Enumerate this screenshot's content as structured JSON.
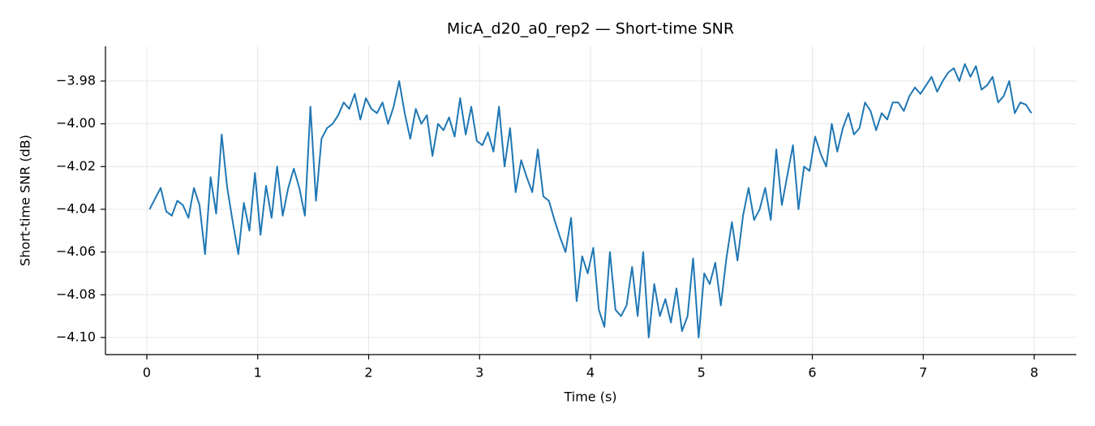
{
  "chart_data": {
    "type": "line",
    "title": "MicA_d20_a0_rep2 — Short-time SNR",
    "xlabel": "Time (s)",
    "ylabel": "Short-time SNR (dB)",
    "xlim": [
      -0.373,
      8.38
    ],
    "ylim": [
      -4.108,
      -3.9637
    ],
    "xticks": [
      0,
      1,
      2,
      3,
      4,
      5,
      6,
      7,
      8
    ],
    "yticks": [
      {
        "value": -4.1,
        "label": "−4.10"
      },
      {
        "value": -4.08,
        "label": "−4.08"
      },
      {
        "value": -4.06,
        "label": "−4.06"
      },
      {
        "value": -4.04,
        "label": "−4.04"
      },
      {
        "value": -4.02,
        "label": "−4.02"
      },
      {
        "value": -4.0,
        "label": "−4.00"
      },
      {
        "value": -3.98,
        "label": "−3.98"
      }
    ],
    "grid": true,
    "series": [
      {
        "color": "#1f77b4",
        "x": [
          0.025,
          0.075,
          0.125,
          0.175,
          0.225,
          0.275,
          0.325,
          0.375,
          0.425,
          0.475,
          0.525,
          0.575,
          0.625,
          0.675,
          0.725,
          0.775,
          0.825,
          0.875,
          0.925,
          0.975,
          1.025,
          1.075,
          1.125,
          1.175,
          1.225,
          1.275,
          1.325,
          1.375,
          1.425,
          1.475,
          1.525,
          1.575,
          1.625,
          1.675,
          1.725,
          1.775,
          1.825,
          1.875,
          1.925,
          1.975,
          2.025,
          2.075,
          2.125,
          2.175,
          2.225,
          2.275,
          2.325,
          2.375,
          2.425,
          2.475,
          2.525,
          2.575,
          2.625,
          2.675,
          2.725,
          2.775,
          2.825,
          2.875,
          2.925,
          2.975,
          3.025,
          3.075,
          3.125,
          3.175,
          3.225,
          3.275,
          3.325,
          3.375,
          3.425,
          3.475,
          3.525,
          3.575,
          3.625,
          3.675,
          3.725,
          3.775,
          3.825,
          3.875,
          3.925,
          3.975,
          4.025,
          4.075,
          4.125,
          4.175,
          4.225,
          4.275,
          4.325,
          4.375,
          4.425,
          4.475,
          4.525,
          4.575,
          4.625,
          4.675,
          4.725,
          4.775,
          4.825,
          4.875,
          4.925,
          4.975,
          5.025,
          5.075,
          5.125,
          5.175,
          5.225,
          5.275,
          5.325,
          5.375,
          5.425,
          5.475,
          5.525,
          5.575,
          5.625,
          5.675,
          5.725,
          5.775,
          5.825,
          5.875,
          5.925,
          5.975,
          6.025,
          6.075,
          6.125,
          6.175,
          6.225,
          6.275,
          6.325,
          6.375,
          6.425,
          6.475,
          6.525,
          6.575,
          6.625,
          6.675,
          6.725,
          6.775,
          6.825,
          6.875,
          6.925,
          6.975,
          7.025,
          7.075,
          7.125,
          7.175,
          7.225,
          7.275,
          7.325,
          7.375,
          7.425,
          7.475,
          7.525,
          7.575,
          7.625,
          7.675,
          7.725,
          7.775,
          7.825,
          7.875,
          7.925,
          7.975
        ],
        "values": [
          -4.04,
          -4.035,
          -4.03,
          -4.041,
          -4.043,
          -4.036,
          -4.038,
          -4.044,
          -4.03,
          -4.038,
          -4.061,
          -4.025,
          -4.042,
          -4.005,
          -4.03,
          -4.046,
          -4.061,
          -4.037,
          -4.05,
          -4.023,
          -4.052,
          -4.029,
          -4.044,
          -4.02,
          -4.043,
          -4.03,
          -4.021,
          -4.03,
          -4.043,
          -3.992,
          -4.036,
          -4.007,
          -4.002,
          -4.0,
          -3.996,
          -3.99,
          -3.993,
          -3.986,
          -3.998,
          -3.988,
          -3.993,
          -3.995,
          -3.99,
          -4.0,
          -3.992,
          -3.98,
          -3.995,
          -4.007,
          -3.993,
          -4.0,
          -3.996,
          -4.015,
          -4.0,
          -4.003,
          -3.997,
          -4.006,
          -3.988,
          -4.005,
          -3.992,
          -4.008,
          -4.01,
          -4.004,
          -4.013,
          -3.992,
          -4.02,
          -4.002,
          -4.032,
          -4.017,
          -4.025,
          -4.032,
          -4.012,
          -4.034,
          -4.036,
          -4.045,
          -4.053,
          -4.06,
          -4.044,
          -4.083,
          -4.062,
          -4.07,
          -4.058,
          -4.087,
          -4.095,
          -4.06,
          -4.087,
          -4.09,
          -4.085,
          -4.067,
          -4.09,
          -4.06,
          -4.1,
          -4.075,
          -4.09,
          -4.082,
          -4.093,
          -4.077,
          -4.097,
          -4.09,
          -4.063,
          -4.1,
          -4.07,
          -4.075,
          -4.065,
          -4.085,
          -4.063,
          -4.046,
          -4.064,
          -4.043,
          -4.03,
          -4.045,
          -4.04,
          -4.03,
          -4.045,
          -4.012,
          -4.038,
          -4.024,
          -4.01,
          -4.04,
          -4.02,
          -4.022,
          -4.006,
          -4.014,
          -4.02,
          -4.0,
          -4.013,
          -4.002,
          -3.995,
          -4.005,
          -4.002,
          -3.99,
          -3.994,
          -4.003,
          -3.995,
          -3.998,
          -3.99,
          -3.99,
          -3.994,
          -3.987,
          -3.983,
          -3.986,
          -3.982,
          -3.978,
          -3.985,
          -3.98,
          -3.976,
          -3.974,
          -3.98,
          -3.972,
          -3.978,
          -3.973,
          -3.984,
          -3.982,
          -3.978,
          -3.99,
          -3.987,
          -3.98,
          -3.995,
          -3.99,
          -3.991,
          -3.995
        ]
      }
    ]
  }
}
